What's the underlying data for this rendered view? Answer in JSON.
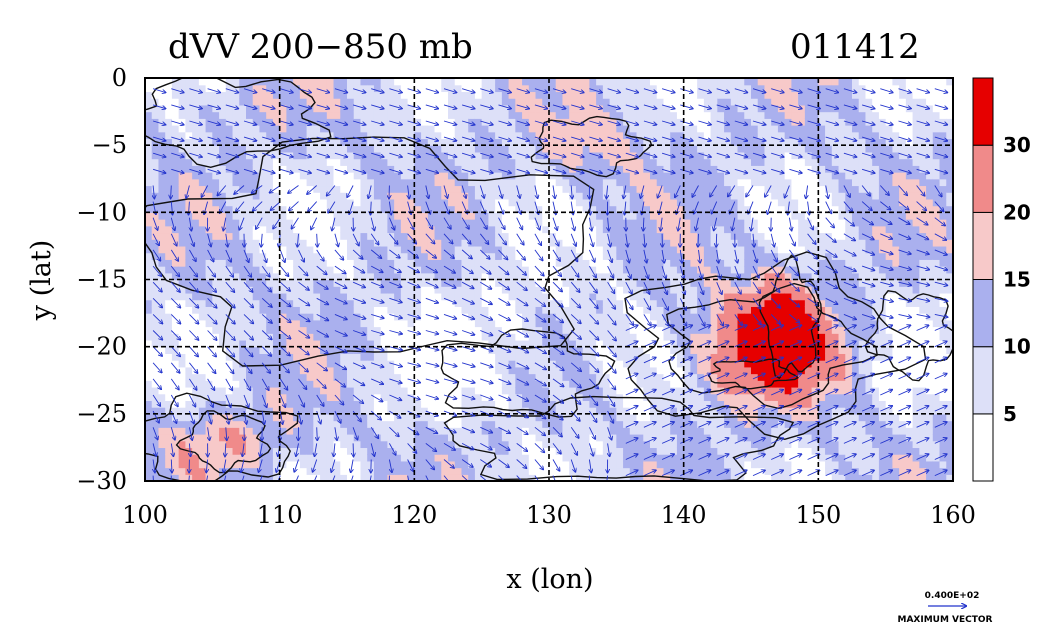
{
  "chart_data": {
    "type": "heatmap",
    "title": "dVV 200−850 mb",
    "subtitle": "011412",
    "xlabel": "x (lon)",
    "ylabel": "y (lat)",
    "xlim": [
      100,
      160
    ],
    "ylim": [
      -30,
      0
    ],
    "x_ticks": [
      "100",
      "110",
      "120",
      "130",
      "140",
      "150",
      "160"
    ],
    "y_ticks": [
      "0",
      "−5",
      "−10",
      "−15",
      "−20",
      "−25",
      "−30"
    ],
    "grid": true,
    "colorbar": {
      "levels": [
        0,
        5,
        10,
        15,
        20,
        30,
        40
      ],
      "labels": [
        "5",
        "10",
        "15",
        "20",
        "30"
      ],
      "colors": [
        "#ffffff",
        "#dde0f8",
        "#aab0ee",
        "#f7c9c9",
        "#f08a8a",
        "#e60000"
      ]
    },
    "vectors": {
      "color": "#2233cc",
      "reference_label": "0.400E+02",
      "reference_caption": "MAXIMUM VECTOR"
    },
    "regions": [
      {
        "level": 1,
        "lon": 106,
        "lat": -3,
        "rlon": 7,
        "rlat": 3
      },
      {
        "level": 2,
        "lon": 117,
        "lat": -13,
        "rlon": 16,
        "rlat": 8
      },
      {
        "level": 2,
        "lon": 135,
        "lat": -27,
        "rlon": 12,
        "rlat": 3
      },
      {
        "level": 3,
        "lon": 105,
        "lat": -27,
        "rlon": 6,
        "rlat": 3
      },
      {
        "level": 3,
        "lon": 146,
        "lat": -20,
        "rlon": 10,
        "rlat": 6
      },
      {
        "level": 4,
        "lon": 146,
        "lat": -20,
        "rlon": 7,
        "rlat": 4
      },
      {
        "level": 4,
        "lon": 133,
        "lat": -5,
        "rlon": 4,
        "rlat": 2
      },
      {
        "level": 4,
        "lon": 106,
        "lat": -27,
        "rlon": 3,
        "rlat": 2
      },
      {
        "level": 5,
        "lon": 148,
        "lat": -18,
        "rlon": 2,
        "rlat": 4
      },
      {
        "level": 5,
        "lon": 145,
        "lat": -22,
        "rlon": 3,
        "rlat": 1
      },
      {
        "level": 0,
        "lon": 128,
        "lat": -22,
        "rlon": 6,
        "rlat": 3
      },
      {
        "level": 0,
        "lon": 157,
        "lat": -19,
        "rlon": 3,
        "rlat": 3
      }
    ]
  },
  "axis_labels": {
    "x": "x (lon)",
    "y": "y (lat)"
  }
}
